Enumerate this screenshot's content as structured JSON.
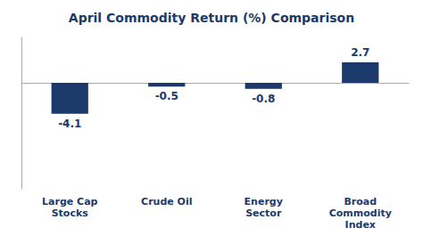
{
  "chart_data": {
    "type": "bar",
    "title": "April Commodity Return (%) Comparison",
    "categories": [
      "Large Cap\nStocks",
      "Crude Oil",
      "Energy\nSector",
      "Broad\nCommodity\nIndex"
    ],
    "values": [
      -4.1,
      -0.5,
      -0.8,
      2.7
    ],
    "color": "#1b3a6b",
    "ylim": [
      -14.0,
      6.0
    ],
    "grid": false,
    "data_labels": true,
    "tick_labels": "x"
  }
}
